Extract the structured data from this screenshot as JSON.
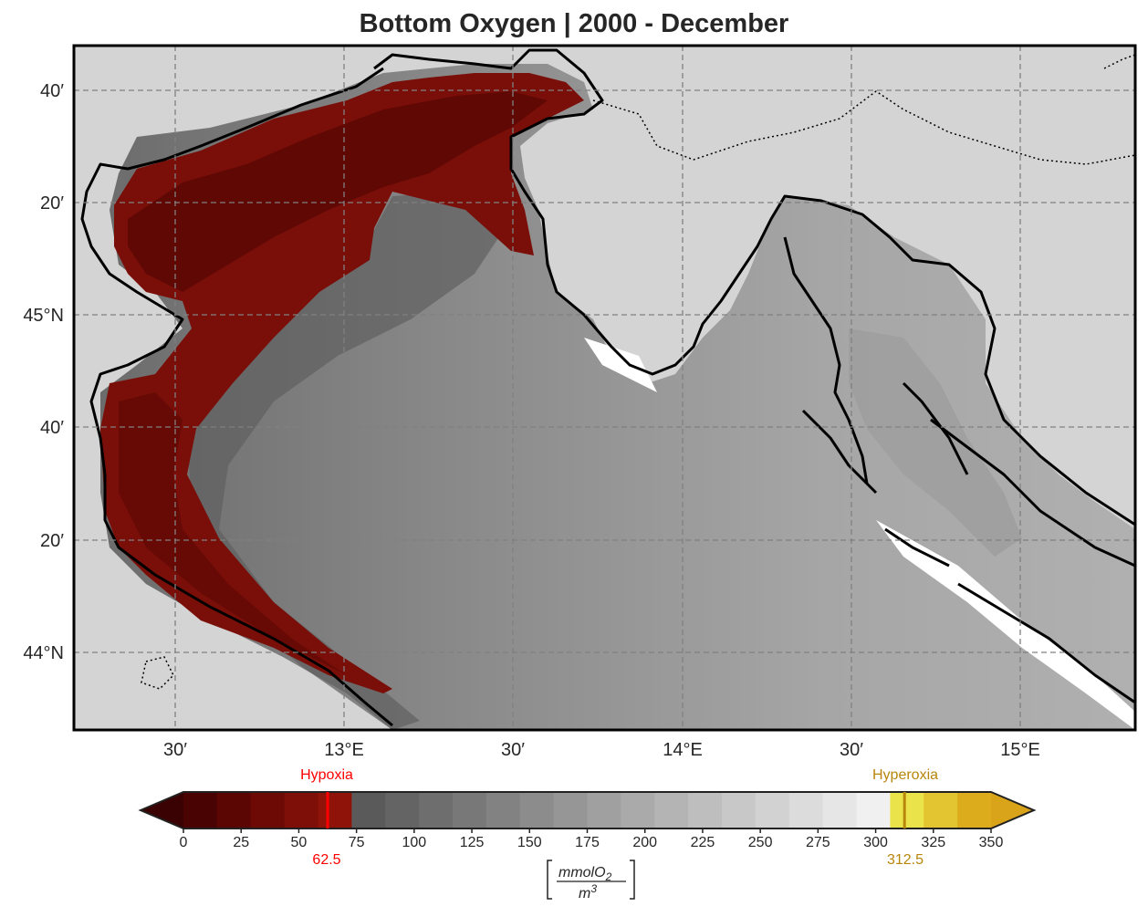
{
  "title": "Bottom Oxygen | 2000 - December",
  "map": {
    "lat_labels": [
      "40′",
      "20′",
      "45°N",
      "40′",
      "20′",
      "44°N"
    ],
    "lon_labels": [
      "30′",
      "13°E",
      "30′",
      "14°E",
      "30′",
      "15°E"
    ],
    "colors": {
      "land": "#d4d4d4",
      "coastline": "#000000",
      "hypoxia_fill": "#7a0f09",
      "gridline": "#808080"
    }
  },
  "colorbar": {
    "ticks": [
      "0",
      "25",
      "50",
      "75",
      "100",
      "125",
      "150",
      "175",
      "200",
      "225",
      "250",
      "275",
      "300",
      "325",
      "350"
    ],
    "hypoxia_label": "Hypoxia",
    "hypoxia_value": "62.5",
    "hyperoxia_label": "Hyperoxia",
    "hyperoxia_value": "312.5",
    "unit_numerator": "mmolO",
    "unit_subscript": "2",
    "unit_denominator": "m",
    "unit_superscript": "3",
    "hypoxia_color": "#ff0000",
    "hyperoxia_color": "#b8860b",
    "bin_colors": [
      "#4a0303",
      "#5c0604",
      "#6d0a06",
      "#7e0e08",
      "#8f1309",
      "#5a5a5a",
      "#646464",
      "#6e6e6e",
      "#787878",
      "#828282",
      "#8c8c8c",
      "#969696",
      "#a0a0a0",
      "#aaaaaa",
      "#b4b4b4",
      "#bebebe",
      "#c8c8c8",
      "#d2d2d2",
      "#dcdcdc",
      "#e6e6e6",
      "#f0f0f0",
      "#ebe34a",
      "#e3c431",
      "#dcac1c"
    ],
    "extend_min_color": "#3a0202",
    "extend_max_color": "#d9a41a"
  }
}
